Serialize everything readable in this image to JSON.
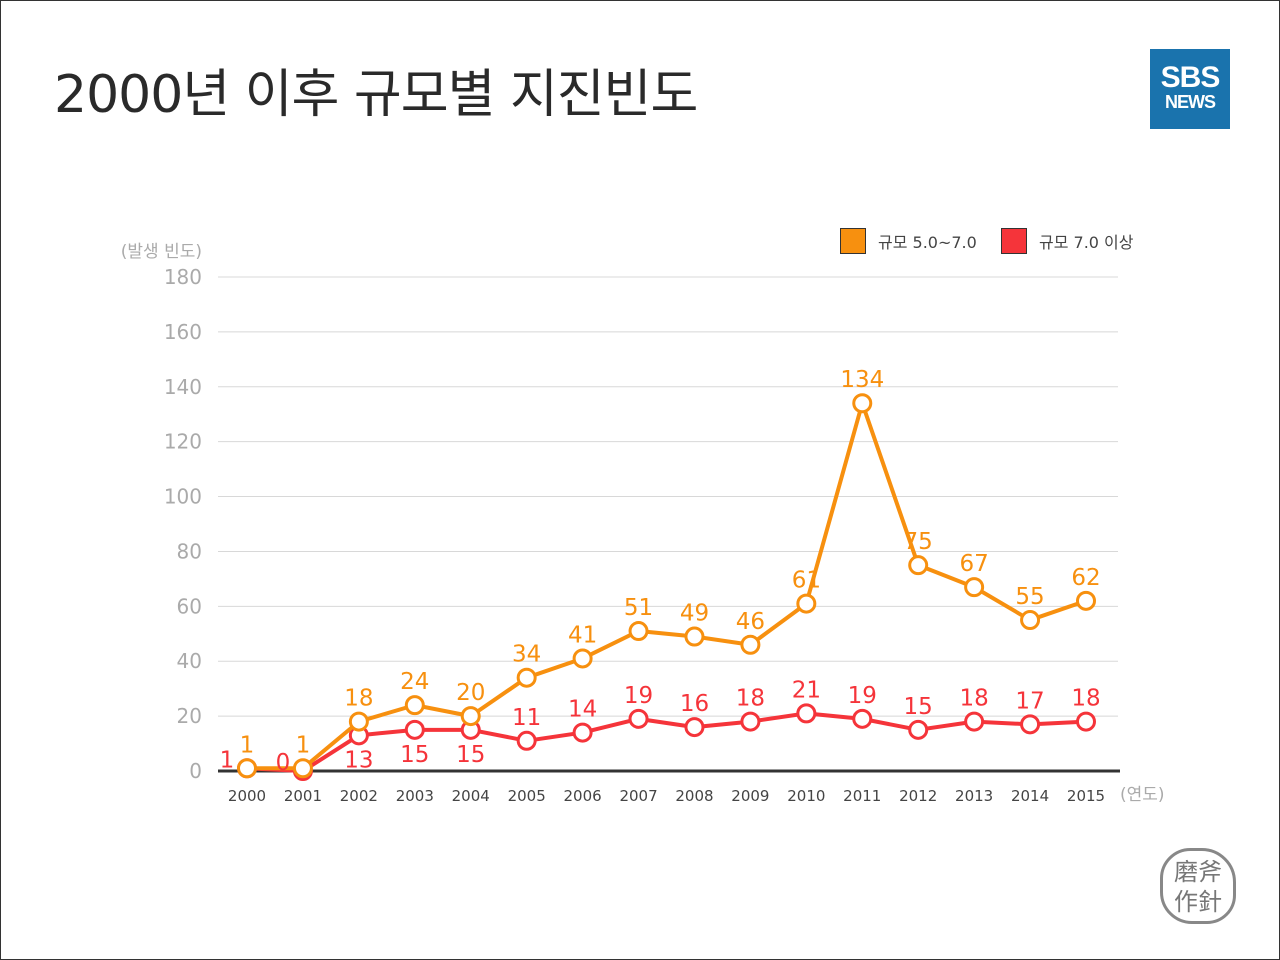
{
  "title": "2000년 이후 규모별 지진빈도",
  "logo": {
    "line1": "SBS",
    "line2": "NEWS",
    "color": "#1a73ad"
  },
  "stamp": {
    "text": "磨斧作針"
  },
  "chart_data": {
    "type": "line",
    "title": "",
    "ylabel": "(발생 빈도)",
    "xlabel": "(연도)",
    "ylim": [
      0,
      180
    ],
    "yticks": [
      "0",
      "20",
      "40",
      "60",
      "80",
      "100",
      "120",
      "140",
      "160",
      "180"
    ],
    "grid": true,
    "legend_position": "top-right",
    "categories": [
      "2000",
      "2001",
      "2002",
      "2003",
      "2004",
      "2005",
      "2006",
      "2007",
      "2008",
      "2009",
      "2010",
      "2011",
      "2012",
      "2013",
      "2014",
      "2015"
    ],
    "series": [
      {
        "name": "규모 5.0~7.0",
        "color": "#f7900f",
        "values": [
          1,
          1,
          18,
          24,
          20,
          34,
          41,
          51,
          49,
          46,
          61,
          134,
          75,
          67,
          55,
          62
        ]
      },
      {
        "name": "규모 7.0 이상",
        "color": "#f5343a",
        "values": [
          1,
          0,
          13,
          15,
          15,
          11,
          14,
          19,
          16,
          18,
          21,
          19,
          15,
          18,
          17,
          18
        ]
      }
    ]
  }
}
